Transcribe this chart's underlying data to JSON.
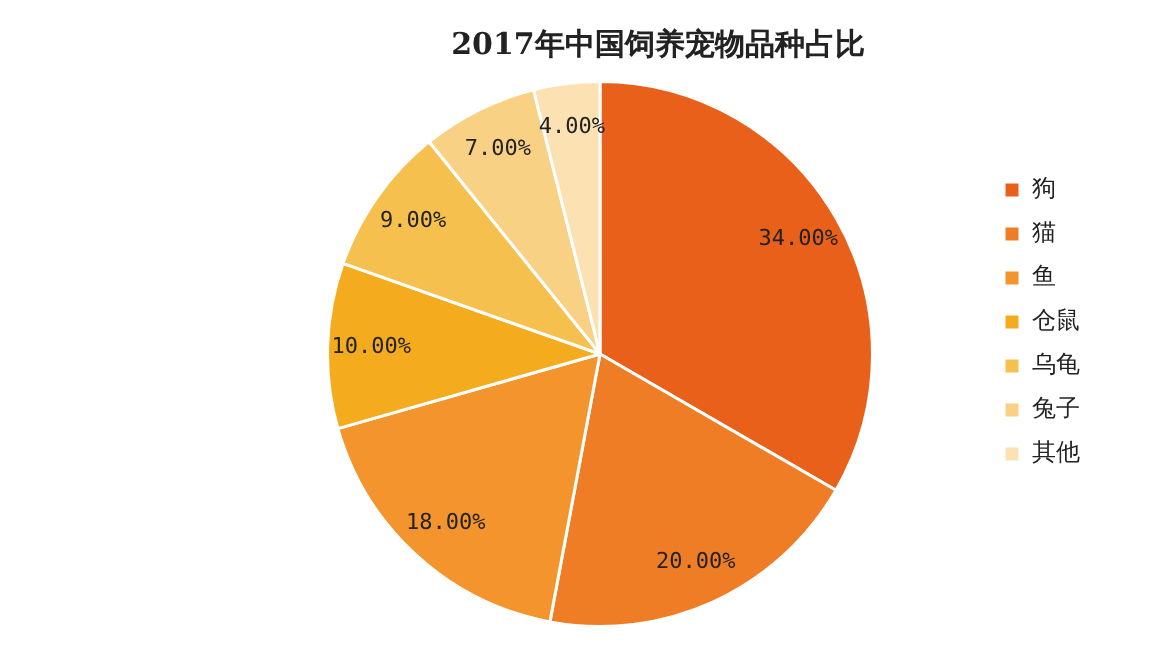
{
  "chart_data": {
    "type": "pie",
    "title": "2017年中国饲养宠物品种占比",
    "categories": [
      "狗",
      "猫",
      "鱼",
      "仓鼠",
      "乌龟",
      "兔子",
      "其他"
    ],
    "values": [
      34,
      20,
      18,
      10,
      9,
      7,
      4
    ],
    "value_labels": [
      "34.00%",
      "20.00%",
      "18.00%",
      "10.00%",
      "9.00%",
      "7.00%",
      "4.00%"
    ],
    "colors": [
      "#e8601a",
      "#ef7d26",
      "#f3942c",
      "#f5ab1e",
      "#f6c04e",
      "#f9d184",
      "#fce2b2"
    ],
    "legend": "right"
  }
}
